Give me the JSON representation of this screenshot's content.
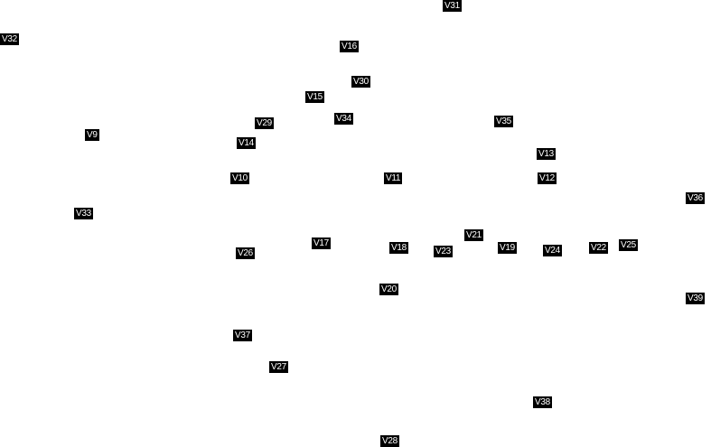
{
  "colors": {
    "background": "#ffffff",
    "label_bg": "#000000",
    "label_text": "#ffffff"
  },
  "labels": {
    "v31": "V31",
    "v32": "V32",
    "v16": "V16",
    "v30": "V30",
    "v15": "V15",
    "v34": "V34",
    "v35": "V35",
    "v29": "V29",
    "v9": "V9",
    "v14": "V14",
    "v13": "V13",
    "v10": "V10",
    "v11": "V11",
    "v12": "V12",
    "v36": "V36",
    "v33": "V33",
    "v21": "V21",
    "v17": "V17",
    "v18": "V18",
    "v19": "V19",
    "v23": "V23",
    "v24": "V24",
    "v22": "V22",
    "v25": "V25",
    "v26": "V26",
    "v20": "V20",
    "v39": "V39",
    "v37": "V37",
    "v27": "V27",
    "v38": "V38",
    "v28": "V28"
  }
}
